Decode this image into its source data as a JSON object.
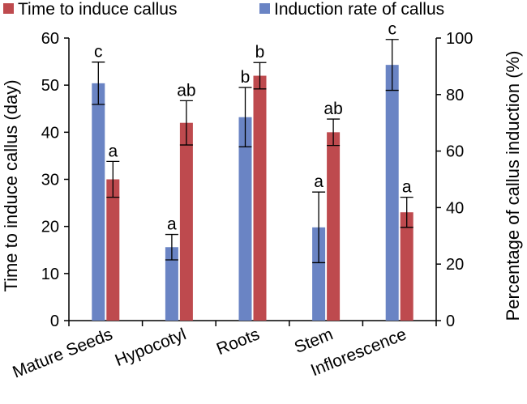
{
  "chart_data": {
    "type": "bar",
    "categories": [
      "Mature Seeds",
      "Hypocotyl",
      "Roots",
      "Stem",
      "Inflorescence"
    ],
    "series": [
      {
        "name": "Induction rate of callus",
        "axis": "right",
        "color": "#6a84c4",
        "values": [
          84,
          26,
          72,
          33,
          90.5
        ],
        "errors": [
          7.5,
          4.5,
          10.5,
          12.5,
          9
        ],
        "labels": [
          "c",
          "a",
          "b",
          "a",
          "c"
        ]
      },
      {
        "name": "Time to induce callus",
        "axis": "left",
        "color": "#be4a4e",
        "values": [
          30,
          42,
          52,
          40,
          23
        ],
        "errors": [
          3.8,
          4.7,
          2.8,
          2.8,
          3.2
        ],
        "labels": [
          "a",
          "ab",
          "b",
          "ab",
          "a"
        ]
      }
    ],
    "ylabel": "Time to induce callus (day)",
    "y2label": "Percentage of callus induction (%)",
    "ylim": [
      0,
      60
    ],
    "y2lim": [
      0,
      100
    ],
    "yticks": [
      "0",
      "10",
      "20",
      "30",
      "40",
      "50",
      "60"
    ],
    "y2ticks": [
      "0",
      "20",
      "40",
      "60",
      "80",
      "100"
    ],
    "legend": [
      "Time to induce callus",
      "Induction rate of callus"
    ],
    "legend_position": "top",
    "grid": false
  }
}
